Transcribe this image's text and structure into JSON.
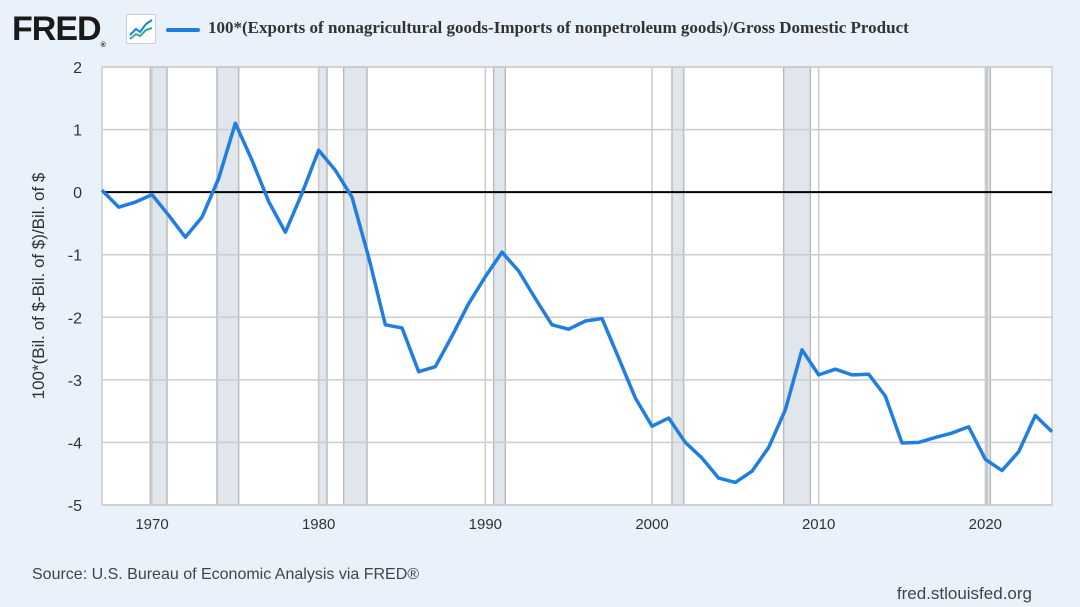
{
  "header": {
    "logo": "FRED",
    "logo_reg": "®",
    "legend_color": "#1f7ee0"
  },
  "footer": {
    "source": "Source: U.S. Bureau of Economic Analysis via FRED®",
    "site": "fred.stlouisfed.org"
  },
  "chart_data": {
    "type": "line",
    "title": "100*(Exports of nonagricultural goods-Imports of nonpetroleum goods)/Gross Domestic Product",
    "xlabel": "",
    "ylabel": "100*(Bil. of $-Bil. of $)/Bil. of $",
    "xlim": [
      1967,
      2024
    ],
    "ylim": [
      -5,
      2
    ],
    "grid": true,
    "legend_position": "top",
    "yticks": [
      2,
      1,
      0,
      -1,
      -2,
      -3,
      -4,
      -5
    ],
    "ytick_labels": [
      "2",
      "1",
      "0",
      "-1",
      "-2",
      "-3",
      "-4",
      "-5"
    ],
    "xticks": [
      1970,
      1980,
      1990,
      2000,
      2010,
      2020
    ],
    "xtick_labels": [
      "1970",
      "1980",
      "1990",
      "2000",
      "2010",
      "2020"
    ],
    "recessions": [
      [
        1969.9,
        1970.9
      ],
      [
        1973.9,
        1975.2
      ],
      [
        1980.0,
        1980.5
      ],
      [
        1981.5,
        1982.9
      ],
      [
        1990.5,
        1991.2
      ],
      [
        2001.2,
        2001.9
      ],
      [
        2007.9,
        2009.5
      ],
      [
        2020.1,
        2020.3
      ]
    ],
    "series": [
      {
        "name": "100*(Exports of nonagricultural goods-Imports of nonpetroleum goods)/Gross Domestic Product",
        "color": "#1f7ee0",
        "x": [
          1967,
          1968,
          1969,
          1970,
          1971,
          1972,
          1973,
          1974,
          1975,
          1976,
          1977,
          1978,
          1979,
          1980,
          1981,
          1982,
          1983,
          1984,
          1985,
          1986,
          1987,
          1988,
          1989,
          1990,
          1991,
          1992,
          1993,
          1994,
          1995,
          1996,
          1997,
          1998,
          1999,
          2000,
          2001,
          2002,
          2003,
          2004,
          2005,
          2006,
          2007,
          2008,
          2009,
          2010,
          2011,
          2012,
          2013,
          2014,
          2015,
          2016,
          2017,
          2018,
          2019,
          2020,
          2021,
          2022,
          2023,
          2024
        ],
        "values": [
          0.03,
          -0.24,
          -0.16,
          -0.04,
          -0.37,
          -0.72,
          -0.4,
          0.22,
          1.1,
          0.51,
          -0.15,
          -0.64,
          -0.02,
          0.67,
          0.35,
          -0.08,
          -1.04,
          -2.12,
          -2.17,
          -2.87,
          -2.79,
          -2.3,
          -1.78,
          -1.35,
          -0.96,
          -1.26,
          -1.7,
          -2.12,
          -2.19,
          -2.06,
          -2.02,
          -2.65,
          -3.29,
          -3.74,
          -3.61,
          -4.0,
          -4.25,
          -4.57,
          -4.64,
          -4.46,
          -4.08,
          -3.48,
          -2.52,
          -2.92,
          -2.83,
          -2.92,
          -2.91,
          -3.26,
          -4.01,
          -4.0,
          -3.92,
          -3.85,
          -3.75,
          -4.27,
          -4.45,
          -4.15,
          -3.57,
          -3.83
        ]
      }
    ]
  }
}
